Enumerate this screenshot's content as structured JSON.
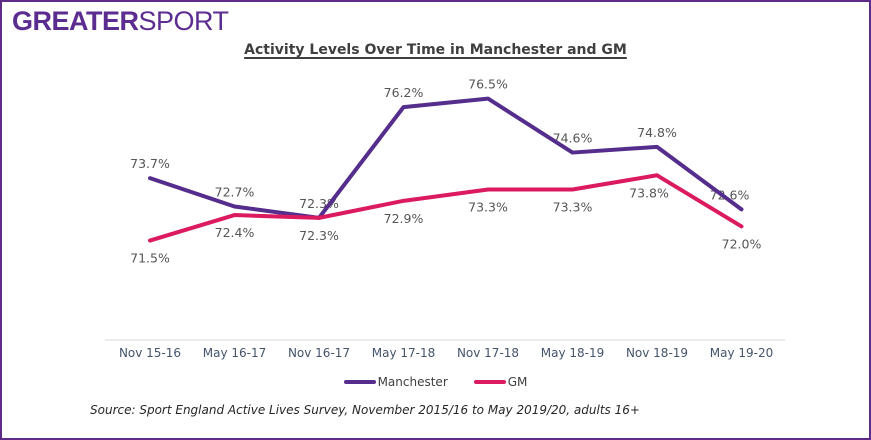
{
  "logo": {
    "bold": "GREATER",
    "light": "SPORT"
  },
  "chart_data": {
    "type": "line",
    "title": "Activity Levels Over Time in Manchester and GM",
    "categories": [
      "Nov 15-16",
      "May 16-17",
      "Nov 16-17",
      "May 17-18",
      "Nov 17-18",
      "May 18-19",
      "Nov 18-19",
      "May 19-20"
    ],
    "series": [
      {
        "name": "Manchester",
        "color": "#552D8C",
        "values": [
          73.7,
          72.7,
          72.3,
          76.2,
          76.5,
          74.6,
          74.8,
          72.6
        ]
      },
      {
        "name": "GM",
        "color": "#DB1A5F",
        "values": [
          71.5,
          72.4,
          72.3,
          72.9,
          73.3,
          73.3,
          73.8,
          72.0
        ]
      }
    ],
    "label_format": "0.0%",
    "ylim": [
      68,
      78
    ],
    "grid": false,
    "legend_position": "bottom"
  },
  "source": "Source: Sport England Active Lives Survey, November 2015/16 to May 2019/20, adults 16+",
  "colors": {
    "border": "#5C2C86",
    "logo": "#5C2D91",
    "title": "#3F3F3F",
    "data_label": "#555555",
    "tick_label": "#44546A",
    "axis_line": "#D9D9D9",
    "legend_text": "#404040",
    "source_text": "#262626"
  }
}
